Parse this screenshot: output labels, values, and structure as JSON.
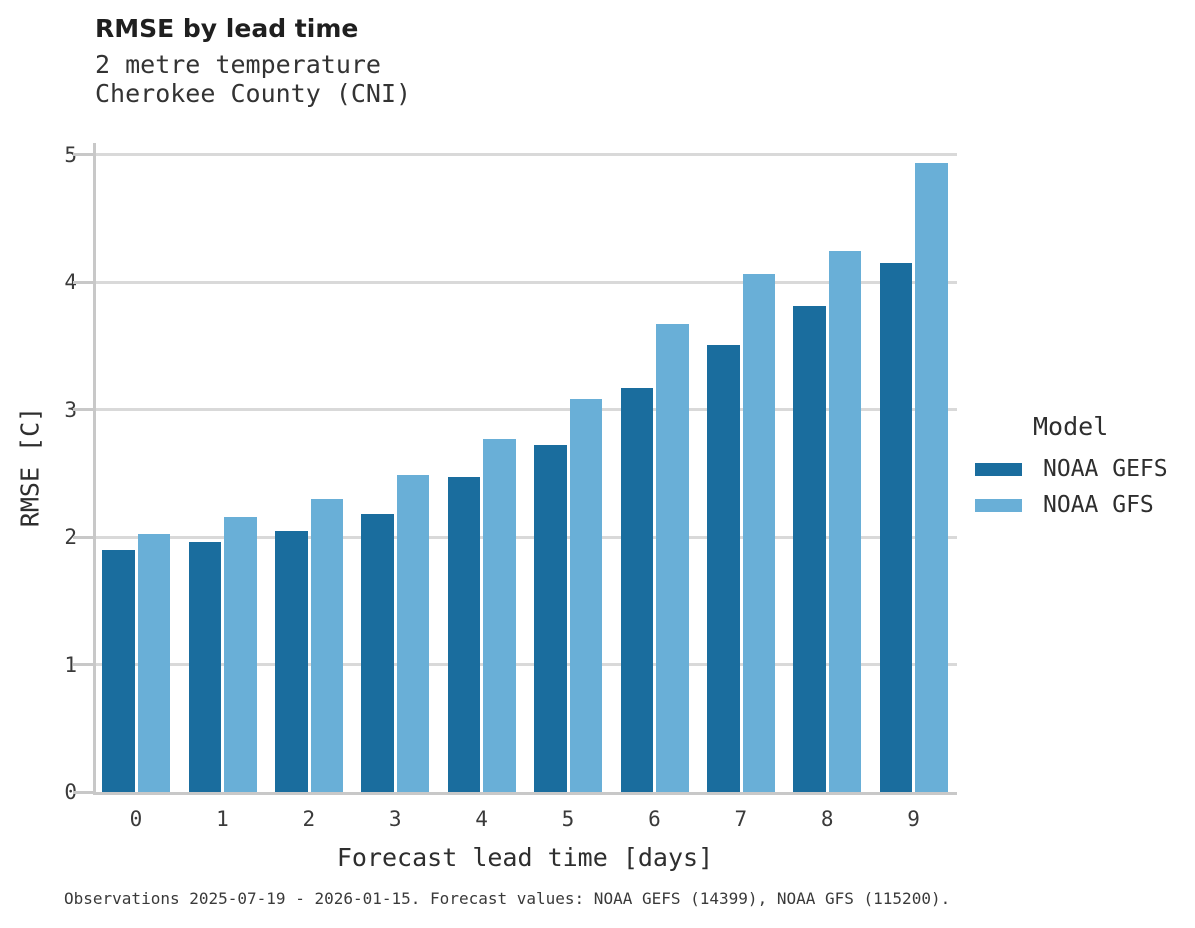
{
  "header": {
    "title": "RMSE by lead time",
    "subtitle_lines": [
      "2 metre temperature",
      "Cherokee County (CNI)"
    ]
  },
  "legend": {
    "title": "Model"
  },
  "chart_data": {
    "type": "bar",
    "title": "RMSE by lead time",
    "subtitle": [
      "2 metre temperature",
      "Cherokee County (CNI)"
    ],
    "categories": [
      "0",
      "1",
      "2",
      "3",
      "4",
      "5",
      "6",
      "7",
      "8",
      "9"
    ],
    "series": [
      {
        "name": "NOAA GEFS",
        "color": "#1a6d9e",
        "values": [
          1.9,
          1.96,
          2.05,
          2.18,
          2.47,
          2.72,
          3.17,
          3.51,
          3.81,
          4.15
        ]
      },
      {
        "name": "NOAA GFS",
        "color": "#69afd7",
        "values": [
          2.02,
          2.16,
          2.3,
          2.49,
          2.77,
          3.08,
          3.67,
          4.06,
          4.24,
          4.93
        ]
      }
    ],
    "xlabel": "Forecast lead time [days]",
    "ylabel": "RMSE [C]",
    "ylim": [
      0,
      5.09
    ],
    "yticks": [
      0,
      1,
      2,
      3,
      4,
      5
    ],
    "grid": true,
    "legend_title": "Model",
    "legend_position": "right-center"
  },
  "footer": {
    "note": "Observations 2025-07-19 - 2026-01-15. Forecast values: NOAA GEFS (14399), NOAA GFS (115200)."
  },
  "colors": {
    "grid": "#d9d9d9",
    "spine": "#c8c8c8",
    "title_text": "#1f1f1f",
    "body_text": "#2e2e2e",
    "tick_text": "#3a3a3a"
  }
}
